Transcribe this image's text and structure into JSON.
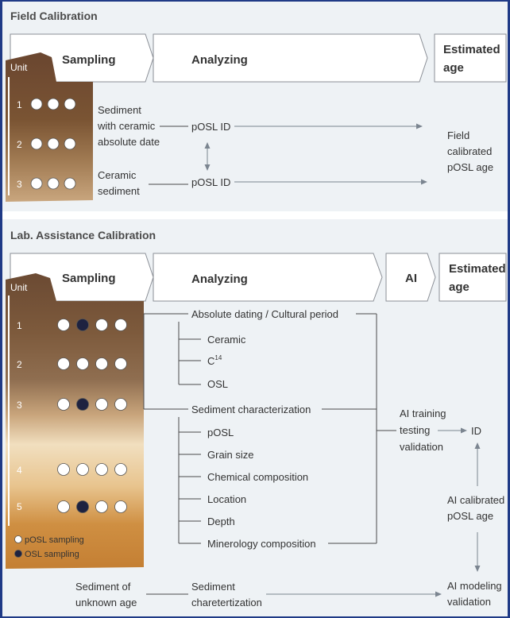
{
  "field": {
    "title": "Field Calibration",
    "steps": [
      "Sampling",
      "Analyzing"
    ],
    "estimated": [
      "Estimated",
      "age"
    ],
    "unit_label": "Unit",
    "unit_numbers": [
      "1",
      "2",
      "3"
    ],
    "sample1": [
      "Sediment",
      "with ceramic",
      "absolute date"
    ],
    "sample2": [
      "Ceramic",
      "sediment"
    ],
    "posl_id": "pOSL ID",
    "result": [
      "Field",
      "calibrated",
      "pOSL age"
    ]
  },
  "lab": {
    "title": "Lab. Assistance Calibration",
    "steps": [
      "Sampling",
      "Analyzing",
      "AI"
    ],
    "estimated": [
      "Estimated",
      "age"
    ],
    "unit_label": "Unit",
    "unit_numbers": [
      "1",
      "2",
      "3",
      "4",
      "5"
    ],
    "absolute_dating": {
      "header": "Absolute dating / Cultural period",
      "items": [
        "Ceramic",
        "C",
        "OSL"
      ],
      "c14_sup": "14"
    },
    "sediment_char": {
      "header": "Sediment characterization",
      "items": [
        "pOSL",
        "Grain size",
        "Chemical composition",
        "Location",
        "Depth",
        "Minerology composition"
      ]
    },
    "ai_training": [
      "AI training",
      "testing",
      "validation"
    ],
    "id": "ID",
    "ai_calibrated": [
      "AI calibrated",
      "pOSL age"
    ],
    "ai_modeling": [
      "AI modeling",
      "validation"
    ],
    "unknown_sediment": [
      "Sediment of",
      "unknown age"
    ],
    "sediment_charet": [
      "Sediment",
      "charetertization"
    ],
    "legend": [
      "pOSL sampling",
      "OSL sampling"
    ]
  },
  "colors": {
    "border": "#1f3a86",
    "panel": "#eef2f5",
    "posl_dot": "#ffffff",
    "osl_dot": "#1e2240",
    "soil_dark": "#6e4a32",
    "soil_light": "#f1dfbf",
    "soil_orange": "#c78a3e"
  }
}
